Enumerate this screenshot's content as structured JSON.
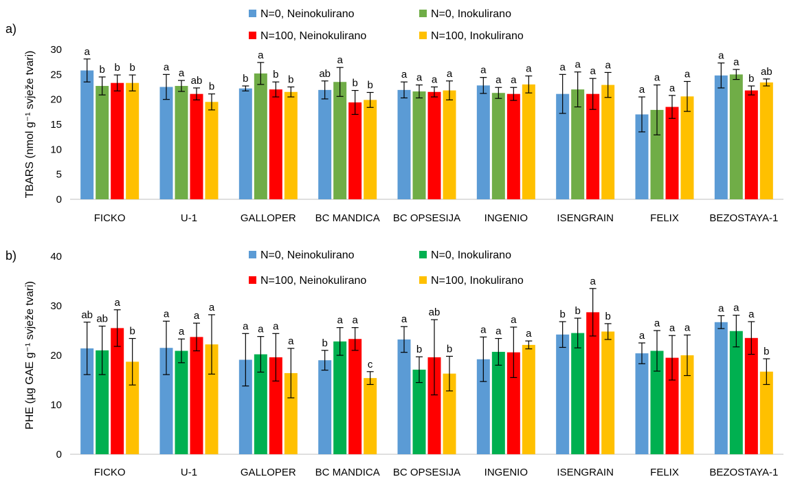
{
  "chart_data": [
    {
      "panel_label": "a)",
      "type": "bar",
      "ylabel": "TBARS (nmol g⁻¹ svježe tvari)",
      "ylim": [
        0,
        30
      ],
      "yticks": [
        0,
        5,
        10,
        15,
        20,
        25,
        30
      ],
      "grid": false,
      "legend_position": "top",
      "categories": [
        "FICKO",
        "U-1",
        "GALLOPER",
        "BC MANDICA",
        "BC OPSESIJA",
        "INGENIO",
        "ISENGRAIN",
        "FELIX",
        "BEZOSTAYA-1"
      ],
      "series": [
        {
          "name": "N=0, Neinokulirano",
          "color": "#5B9BD5",
          "values": [
            25.8,
            22.5,
            22.2,
            21.9,
            21.9,
            22.8,
            21.1,
            17.0,
            24.8
          ],
          "errors": [
            2.3,
            2.5,
            0.5,
            1.8,
            1.6,
            1.6,
            3.9,
            3.5,
            2.5
          ],
          "letters": [
            "a",
            "a",
            "b",
            "ab",
            "a",
            "a",
            "a",
            "a",
            "a"
          ]
        },
        {
          "name": "N=0, Inokulirano",
          "color": "#70AD47",
          "values": [
            22.7,
            22.7,
            25.2,
            23.5,
            21.6,
            21.3,
            22.0,
            17.9,
            25.0
          ],
          "errors": [
            1.8,
            1.1,
            2.2,
            2.9,
            1.3,
            1.1,
            3.5,
            5.0,
            1.0
          ],
          "letters": [
            "b",
            "a",
            "a",
            "a",
            "a",
            "a",
            "a",
            "a",
            "a"
          ]
        },
        {
          "name": "N=100, Neinokulirano",
          "color": "#FF0000",
          "values": [
            23.3,
            21.1,
            22.0,
            19.4,
            21.5,
            21.1,
            21.1,
            18.5,
            21.8
          ],
          "errors": [
            1.6,
            1.2,
            1.5,
            2.4,
            1.0,
            1.3,
            3.1,
            2.3,
            0.9
          ],
          "letters": [
            "b",
            "ab",
            "b",
            "b",
            "a",
            "a",
            "a",
            "a",
            "b"
          ]
        },
        {
          "name": "N=100, Inokulirano",
          "color": "#FFC000",
          "values": [
            23.3,
            19.5,
            21.5,
            19.9,
            21.8,
            23.0,
            22.9,
            20.6,
            23.4
          ],
          "errors": [
            1.6,
            1.6,
            1.0,
            1.5,
            1.9,
            1.7,
            2.5,
            3.0,
            0.7
          ],
          "letters": [
            "b",
            "b",
            "b",
            "b",
            "a",
            "a",
            "a",
            "a",
            "ab"
          ]
        }
      ]
    },
    {
      "panel_label": "b)",
      "type": "bar",
      "ylabel": "PHE (µg GAE g⁻¹ svježe tvari)",
      "ylim": [
        0,
        40
      ],
      "yticks": [
        0,
        10,
        20,
        30,
        40
      ],
      "grid": false,
      "legend_position": "top",
      "categories": [
        "FICKO",
        "U-1",
        "GALLOPER",
        "BC MANDICA",
        "BC OPSESIJA",
        "INGENIO",
        "ISENGRAIN",
        "FELIX",
        "BEZOSTAYA-1"
      ],
      "series": [
        {
          "name": "N=0, Neinokulirano",
          "color": "#5B9BD5",
          "values": [
            21.4,
            21.5,
            19.1,
            19.0,
            23.2,
            19.2,
            24.2,
            20.4,
            26.7
          ],
          "errors": [
            5.3,
            5.4,
            5.3,
            2.0,
            2.6,
            4.5,
            2.6,
            2.1,
            1.3
          ],
          "letters": [
            "ab",
            "a",
            "a",
            "b",
            "a",
            "a",
            "b",
            "a",
            "a"
          ]
        },
        {
          "name": "N=0, Inokulirano",
          "color": "#00B050",
          "values": [
            21.0,
            20.9,
            20.2,
            22.8,
            17.1,
            20.7,
            24.5,
            20.9,
            24.9
          ],
          "errors": [
            4.9,
            2.4,
            3.6,
            2.8,
            2.6,
            2.7,
            3.0,
            4.1,
            3.2
          ],
          "letters": [
            "ab",
            "a",
            "a",
            "a",
            "b",
            "a",
            "b",
            "a",
            "a"
          ]
        },
        {
          "name": "N=100, Neinokulirano",
          "color": "#FF0000",
          "values": [
            25.5,
            23.7,
            19.6,
            23.3,
            19.6,
            20.6,
            28.7,
            19.5,
            23.5
          ],
          "errors": [
            3.7,
            2.8,
            4.8,
            2.3,
            7.6,
            5.1,
            4.8,
            4.5,
            3.3
          ],
          "letters": [
            "a",
            "a",
            "a",
            "a",
            "ab",
            "a",
            "a",
            "a",
            "a"
          ]
        },
        {
          "name": "N=100, Inokulirano",
          "color": "#FFC000",
          "values": [
            18.7,
            22.2,
            16.4,
            15.4,
            16.3,
            22.1,
            24.8,
            20.0,
            16.7
          ],
          "errors": [
            4.7,
            6.0,
            5.0,
            1.3,
            3.5,
            0.8,
            1.6,
            4.1,
            2.6
          ],
          "letters": [
            "b",
            "a",
            "a",
            "c",
            "b",
            "a",
            "b",
            "a",
            "b"
          ]
        }
      ]
    }
  ]
}
